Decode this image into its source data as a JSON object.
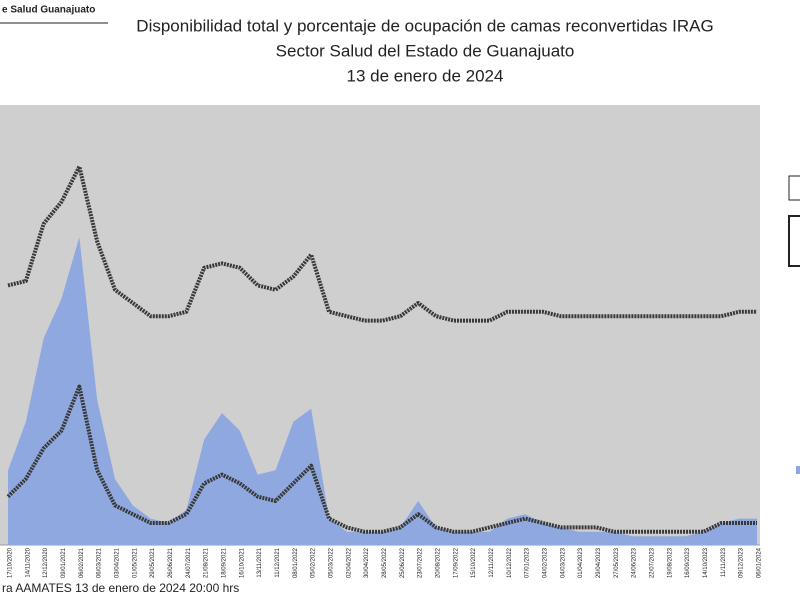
{
  "chart_data": {
    "type": "area-line",
    "source_header": "e Salud Guanajuato",
    "title": [
      "Disponibilidad total y porcentaje de ocupación de camas reconvertidas IRAG",
      "Sector Salud del Estado de Guanajuato",
      "13 de enero de 2024"
    ],
    "footer": "ra AAMATES 13 de enero de 2024 20:00 hrs",
    "categories": [
      "17/10/2020",
      "14/11/2020",
      "12/12/2020",
      "09/01/2021",
      "06/02/2021",
      "06/03/2021",
      "03/04/2021",
      "01/05/2021",
      "29/05/2021",
      "26/06/2021",
      "24/07/2021",
      "21/08/2021",
      "18/09/2021",
      "16/10/2021",
      "13/11/2021",
      "11/12/2021",
      "08/01/2022",
      "05/02/2022",
      "05/03/2022",
      "02/04/2022",
      "30/04/2022",
      "28/05/2022",
      "25/06/2022",
      "23/07/2022",
      "20/08/2022",
      "17/09/2022",
      "15/10/2022",
      "12/11/2022",
      "10/12/2022",
      "07/01/2023",
      "04/02/2023",
      "04/03/2023",
      "01/04/2023",
      "29/04/2023",
      "27/05/2023",
      "24/06/2023",
      "22/07/2023",
      "19/08/2023",
      "16/09/2023",
      "14/10/2023",
      "11/11/2023",
      "09/12/2023",
      "06/01/2024"
    ],
    "series": [
      {
        "kind": "area",
        "color": "#8fa9e0",
        "values": [
          17,
          28,
          47,
          56,
          70,
          33,
          15,
          9,
          6,
          5,
          8,
          24,
          30,
          26,
          16,
          17,
          28,
          31,
          6,
          3,
          3,
          3,
          4,
          10,
          4,
          3,
          3,
          3,
          6,
          7,
          5,
          4,
          3,
          3,
          3,
          2,
          2,
          2,
          2,
          3,
          5,
          6,
          6
        ]
      },
      {
        "kind": "line",
        "color": "#383838",
        "values": [
          59,
          60,
          73,
          78,
          86,
          69,
          58,
          55,
          52,
          52,
          53,
          63,
          64,
          63,
          59,
          58,
          61,
          66,
          53,
          52,
          51,
          51,
          52,
          55,
          52,
          51,
          51,
          51,
          53,
          53,
          53,
          52,
          52,
          52,
          52,
          52,
          52,
          52,
          52,
          52,
          52,
          53,
          53
        ]
      },
      {
        "kind": "line",
        "color": "#383838",
        "values": [
          11,
          15,
          22,
          26,
          36,
          17,
          9,
          7,
          5,
          5,
          7,
          14,
          16,
          14,
          11,
          10,
          14,
          18,
          6,
          4,
          3,
          3,
          4,
          7,
          4,
          3,
          3,
          4,
          5,
          6,
          5,
          4,
          4,
          4,
          3,
          3,
          3,
          3,
          3,
          3,
          5,
          5,
          5
        ]
      }
    ],
    "ylim": [
      0,
      100
    ],
    "plot_background": "#d0cfcf"
  }
}
